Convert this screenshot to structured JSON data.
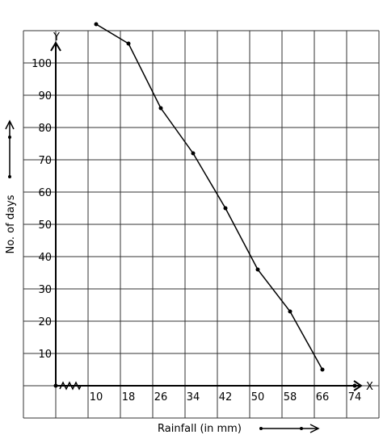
{
  "chart_data": {
    "type": "line",
    "title": "",
    "xlabel": "Rainfall (in mm)",
    "ylabel": "No. of days",
    "x_axis_letter": "X",
    "y_axis_letter": "Y",
    "x": [
      10,
      18,
      26,
      34,
      42,
      50,
      58,
      66
    ],
    "y": [
      112,
      106,
      86,
      72,
      55,
      36,
      23,
      5
    ],
    "x_ticks": [
      10,
      18,
      26,
      34,
      42,
      50,
      58,
      66,
      74
    ],
    "y_ticks": [
      10,
      20,
      30,
      40,
      50,
      60,
      70,
      80,
      90,
      100
    ],
    "xlim": [
      0,
      78
    ],
    "ylim": [
      -10,
      110
    ],
    "grid": true,
    "origin_marker": "kink",
    "colors": {
      "line": "#000000",
      "grid": "#333333",
      "axis": "#000000"
    }
  }
}
